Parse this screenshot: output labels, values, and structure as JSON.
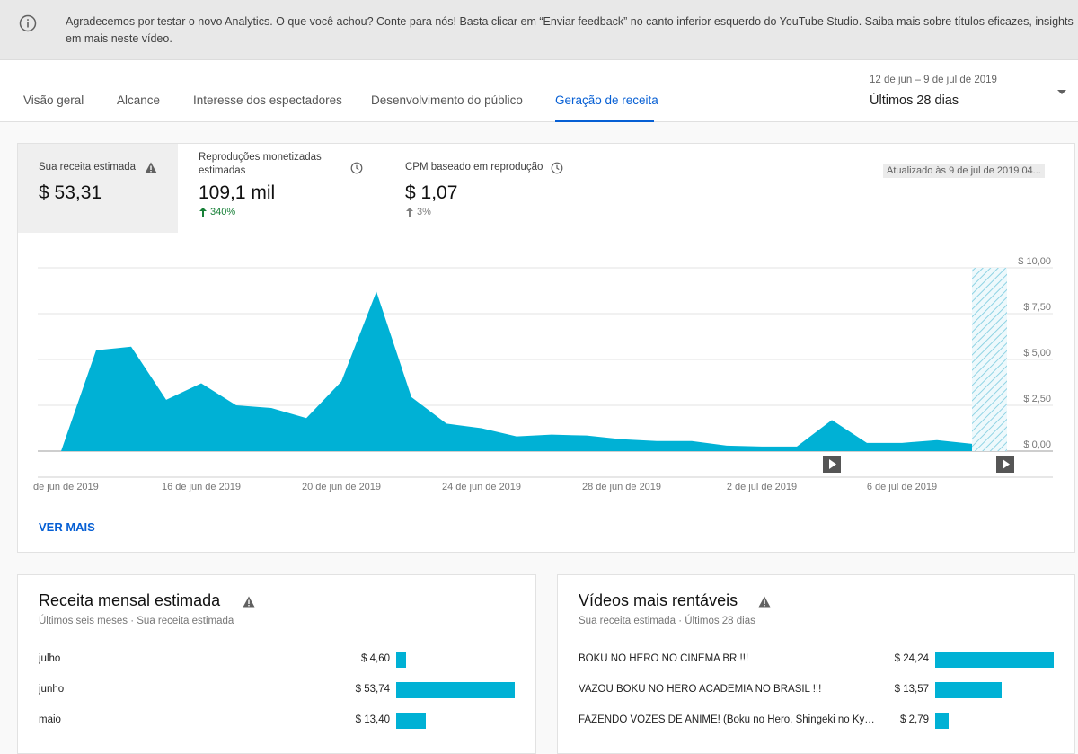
{
  "banner": {
    "text": "Agradecemos por testar o novo Analytics. O que você achou? Conte para nós! Basta clicar em “Enviar feedback” no canto inferior esquerdo do YouTube Studio. Saiba mais sobre títulos eficazes, insights em mais neste vídeo."
  },
  "tabs": [
    {
      "label": "Visão geral"
    },
    {
      "label": "Alcance"
    },
    {
      "label": "Interesse dos espectadores"
    },
    {
      "label": "Desenvolvimento do público"
    },
    {
      "label": "Geração de receita"
    }
  ],
  "date": {
    "range": "12 de jun – 9 de jul de 2019",
    "period": "Últimos 28 dias"
  },
  "metrics": [
    {
      "label": "Sua receita estimada",
      "value": "$ 53,31"
    },
    {
      "label": "Reproduções monetizadas estimadas",
      "value": "109,1 mil",
      "delta": "340%"
    },
    {
      "label": "CPM baseado em reprodução",
      "value": "$ 1,07",
      "delta": "3%"
    }
  ],
  "updated": "Atualizado às 9 de jul de 2019 04...",
  "chart_data": {
    "type": "area",
    "y_ticks": [
      "$ 10,00",
      "$ 7,50",
      "$ 5,00",
      "$ 2,50",
      "$ 0,00"
    ],
    "ylim": [
      0,
      10
    ],
    "x_tick_labels": [
      "de jun de 2019",
      "16 de jun de 2019",
      "20 de jun de 2019",
      "24 de jun de 2019",
      "28 de jun de 2019",
      "2 de jul de 2019",
      "6 de jul de 2019"
    ],
    "x": [
      "12 jun",
      "13 jun",
      "14 jun",
      "15 jun",
      "16 jun",
      "17 jun",
      "18 jun",
      "19 jun",
      "20 jun",
      "21 jun",
      "22 jun",
      "23 jun",
      "24 jun",
      "25 jun",
      "26 jun",
      "27 jun",
      "28 jun",
      "29 jun",
      "30 jun",
      "1 jul",
      "2 jul",
      "3 jul",
      "4 jul",
      "5 jul",
      "6 jul",
      "7 jul",
      "8 jul",
      "9 jul"
    ],
    "values": [
      0.0,
      5.5,
      5.7,
      2.8,
      3.7,
      2.5,
      2.35,
      1.8,
      3.8,
      8.7,
      2.95,
      1.5,
      1.25,
      0.8,
      0.9,
      0.85,
      0.65,
      0.55,
      0.55,
      0.3,
      0.25,
      0.25,
      1.7,
      0.45,
      0.45,
      0.6,
      0.4,
      null
    ],
    "partial_day": "9 jul",
    "series_color": "#00b1d5",
    "video_markers": [
      "4 jul",
      "9 jul"
    ]
  },
  "ver_mais": "VER MAIS",
  "monthly": {
    "title": "Receita mensal estimada",
    "subtitle": "Últimos seis meses · Sua receita estimada",
    "chart_data": {
      "type": "bar",
      "categories": [
        "julho",
        "junho",
        "maio"
      ],
      "values": [
        4.6,
        53.74,
        13.4
      ],
      "value_labels": [
        "$ 4,60",
        "$ 53,74",
        "$ 13,40"
      ]
    }
  },
  "top_videos": {
    "title": "Vídeos mais rentáveis",
    "subtitle": "Sua receita estimada · Últimos 28 dias",
    "chart_data": {
      "type": "bar",
      "categories": [
        "BOKU NO HERO NO CINEMA BR !!!",
        "VAZOU BOKU NO HERO ACADEMIA NO BRASIL !!!",
        "FAZENDO VOZES DE ANIME! (Boku no Hero, Shingeki no Kyojin)"
      ],
      "values": [
        24.24,
        13.57,
        2.79
      ],
      "value_labels": [
        "$ 24,24",
        "$ 13,57",
        "$ 2,79"
      ]
    }
  }
}
